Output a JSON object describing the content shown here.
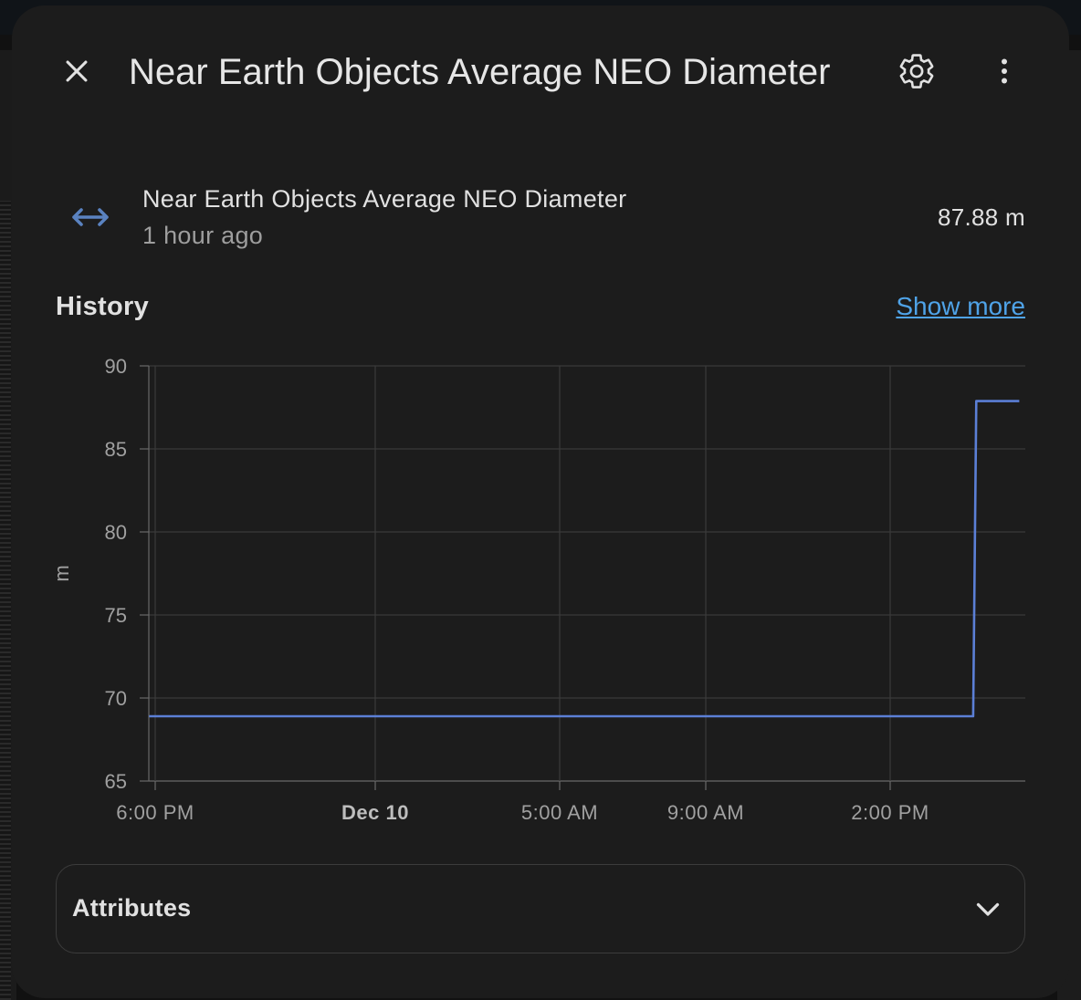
{
  "dialog": {
    "title": "Near Earth Objects Average NEO Diameter",
    "close_icon": "close-icon",
    "settings_icon": "gear-icon",
    "more_icon": "more-vertical-icon"
  },
  "entity": {
    "icon": "arrow-left-right-icon",
    "name": "Near Earth Objects Average NEO Diameter",
    "last_changed": "1 hour ago",
    "state": "87.88 m"
  },
  "history": {
    "title": "History",
    "show_more": "Show more"
  },
  "chart_data": {
    "type": "line",
    "title": "",
    "xlabel": "",
    "ylabel": "m",
    "ylim": [
      65,
      90
    ],
    "yticks": [
      90,
      85,
      80,
      75,
      70,
      65
    ],
    "xticks": [
      {
        "label": "6:00 PM",
        "bold": false
      },
      {
        "label": "Dec 10",
        "bold": true
      },
      {
        "label": "5:00 AM",
        "bold": false
      },
      {
        "label": "9:00 AM",
        "bold": false
      },
      {
        "label": "2:00 PM",
        "bold": false
      }
    ],
    "grid": true,
    "series": [
      {
        "color": "#5b7fd6",
        "step": true,
        "points": [
          {
            "x": "Dec 9 17:50",
            "y": 68.9
          },
          {
            "x": "Dec 10 16:15",
            "y": 68.9
          },
          {
            "x": "Dec 10 16:20",
            "y": 87.88
          },
          {
            "x": "Dec 10 17:30",
            "y": 87.88
          }
        ]
      }
    ]
  },
  "attributes": {
    "label": "Attributes",
    "chevron_icon": "chevron-down-icon"
  }
}
